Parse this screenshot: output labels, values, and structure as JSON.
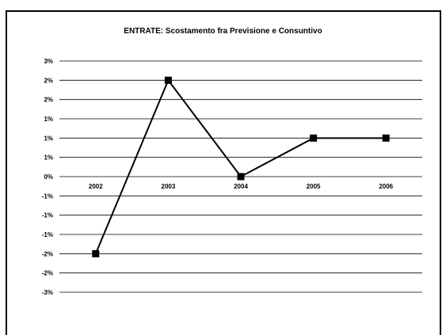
{
  "chart_data": {
    "type": "line",
    "title": "ENTRATE: Scostamento fra Previsione e Consuntivo",
    "xlabel": "",
    "ylabel": "",
    "categories": [
      "2002",
      "2003",
      "2004",
      "2005",
      "2006"
    ],
    "series": [
      {
        "values": [
          -0.02,
          0.025,
          0.0,
          0.01,
          0.01
        ]
      }
    ],
    "ylim": [
      -0.03,
      0.03
    ],
    "y_ticks": [
      {
        "value": 0.03,
        "label": "3%"
      },
      {
        "value": 0.025,
        "label": "2%"
      },
      {
        "value": 0.02,
        "label": "2%"
      },
      {
        "value": 0.015,
        "label": "1%"
      },
      {
        "value": 0.01,
        "label": "1%"
      },
      {
        "value": 0.005,
        "label": "1%"
      },
      {
        "value": 0.0,
        "label": "0%"
      },
      {
        "value": -0.005,
        "label": "-1%"
      },
      {
        "value": -0.01,
        "label": "-1%"
      },
      {
        "value": -0.015,
        "label": "-1%"
      },
      {
        "value": -0.02,
        "label": "-2%"
      },
      {
        "value": -0.025,
        "label": "-2%"
      },
      {
        "value": -0.03,
        "label": "-3%"
      }
    ],
    "grid": true,
    "legend": "none",
    "line_color": "#000000",
    "marker": "square"
  }
}
